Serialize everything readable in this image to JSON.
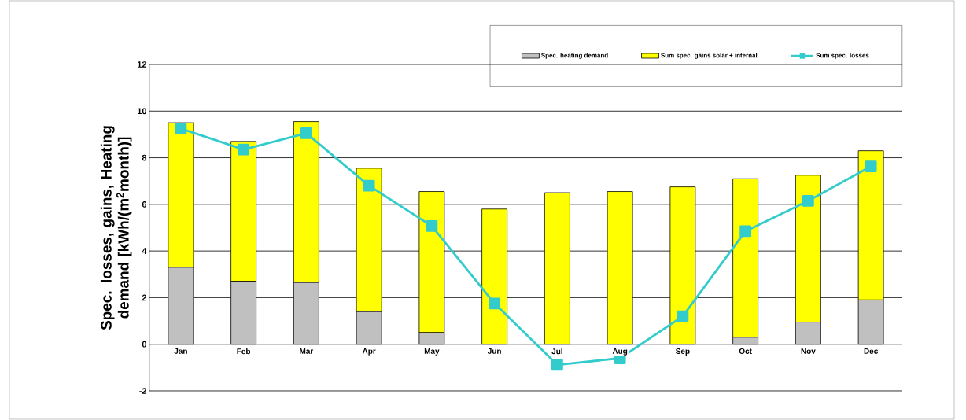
{
  "chart_data": {
    "type": "bar",
    "stacked": true,
    "ylabel": "Spec. losses, gains, Heating demand [kWh/(m$^{2}$month)]",
    "categories": [
      "Jan",
      "Feb",
      "Mar",
      "Apr",
      "May",
      "Jun",
      "Jul",
      "Aug",
      "Sep",
      "Oct",
      "Nov",
      "Dec"
    ],
    "series": [
      {
        "name": "Spec. heating demand",
        "color": "#c0c0c0",
        "values": [
          3.3,
          2.7,
          2.65,
          1.4,
          0.5,
          0,
          0,
          0,
          0,
          0.3,
          0.95,
          1.9
        ]
      },
      {
        "name": "Sum spec. gains solar + internal",
        "color": "#ffff00",
        "values": [
          6.2,
          6.0,
          6.9,
          6.15,
          6.05,
          5.8,
          6.5,
          6.55,
          6.75,
          6.8,
          6.3,
          6.4
        ]
      },
      {
        "name": "Sum spec. losses",
        "type": "line",
        "color": "#33cccc",
        "values": [
          9.25,
          8.35,
          9.05,
          6.8,
          5.07,
          1.75,
          -0.88,
          -0.6,
          1.2,
          4.85,
          6.15,
          7.63
        ]
      }
    ],
    "ylim": [
      -2,
      12
    ],
    "yticks": [
      -2,
      0,
      2,
      4,
      6,
      8,
      10,
      12
    ],
    "grid": "y",
    "legend": "top right",
    "marker": "square",
    "line_style": "solid"
  }
}
